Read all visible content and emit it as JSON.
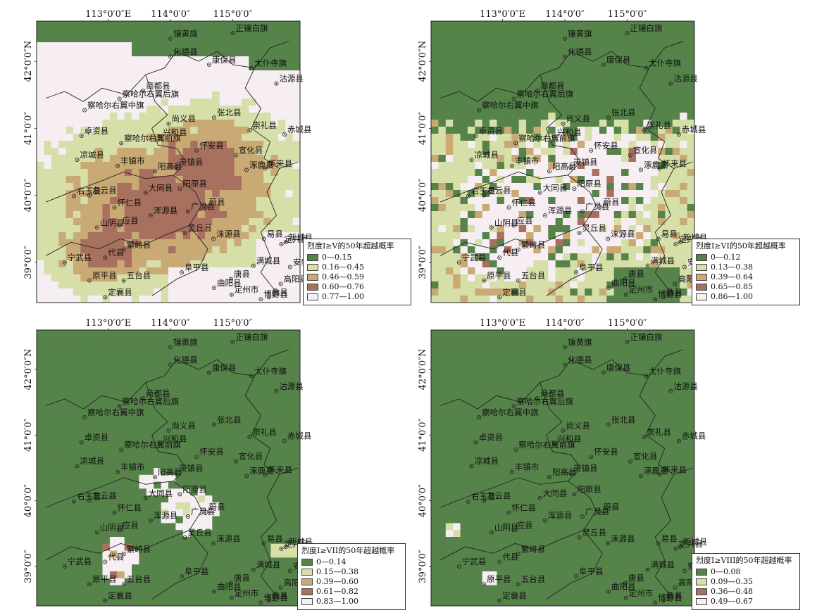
{
  "axes": {
    "lon_labels": [
      "113°0′0″E",
      "114°0′0″",
      "115°0′0″"
    ],
    "lat_labels": [
      "42°0′0″N",
      "41°0′0″",
      "40°0′0″",
      "39°0′0″"
    ]
  },
  "cities": [
    {
      "name": "镶黄旗",
      "lon": 114.0,
      "lat": 42.34
    },
    {
      "name": "正镶白旗",
      "lon": 115.0,
      "lat": 42.42
    },
    {
      "name": "化德县",
      "lon": 114.0,
      "lat": 42.07
    },
    {
      "name": "康保县",
      "lon": 114.62,
      "lat": 41.95
    },
    {
      "name": "太仆寺旗",
      "lon": 115.3,
      "lat": 41.9
    },
    {
      "name": "沽源县",
      "lon": 115.7,
      "lat": 41.67
    },
    {
      "name": "商都县",
      "lon": 113.56,
      "lat": 41.56
    },
    {
      "name": "察哈尔右翼后旗",
      "lon": 113.18,
      "lat": 41.44
    },
    {
      "name": "察哈尔右翼中旗",
      "lon": 112.62,
      "lat": 41.27
    },
    {
      "name": "尚义县",
      "lon": 113.97,
      "lat": 41.07
    },
    {
      "name": "张北县",
      "lon": 114.7,
      "lat": 41.16
    },
    {
      "name": "崇礼县",
      "lon": 115.27,
      "lat": 40.97
    },
    {
      "name": "赤城县",
      "lon": 115.83,
      "lat": 40.91
    },
    {
      "name": "卓资县",
      "lon": 112.57,
      "lat": 40.89
    },
    {
      "name": "兴和县",
      "lon": 113.83,
      "lat": 40.87
    },
    {
      "name": "察哈尔右翼前旗",
      "lon": 113.21,
      "lat": 40.78
    },
    {
      "name": "怀安县",
      "lon": 114.42,
      "lat": 40.67
    },
    {
      "name": "宣化县",
      "lon": 115.05,
      "lat": 40.6
    },
    {
      "name": "凉城县",
      "lon": 112.5,
      "lat": 40.53
    },
    {
      "name": "丰镇市",
      "lon": 113.15,
      "lat": 40.44
    },
    {
      "name": "涿鹿县",
      "lon": 115.22,
      "lat": 40.38
    },
    {
      "name": "怀来县",
      "lon": 115.52,
      "lat": 40.4
    },
    {
      "name": "阳高县",
      "lon": 113.75,
      "lat": 40.36
    },
    {
      "name": "天镇县",
      "lon": 114.09,
      "lat": 40.42
    },
    {
      "name": "阳原县",
      "lon": 114.15,
      "lat": 40.1
    },
    {
      "name": "大同县",
      "lon": 113.6,
      "lat": 40.04
    },
    {
      "name": "右玉县",
      "lon": 112.45,
      "lat": 39.99
    },
    {
      "name": "左云县",
      "lon": 112.7,
      "lat": 40.0
    },
    {
      "name": "怀仁县",
      "lon": 113.1,
      "lat": 39.82
    },
    {
      "name": "蔚县",
      "lon": 114.57,
      "lat": 39.83
    },
    {
      "name": "广灵县",
      "lon": 114.28,
      "lat": 39.76
    },
    {
      "name": "浑源县",
      "lon": 113.68,
      "lat": 39.7
    },
    {
      "name": "山阴县",
      "lon": 112.82,
      "lat": 39.52
    },
    {
      "name": "应县",
      "lon": 113.18,
      "lat": 39.55
    },
    {
      "name": "灵丘县",
      "lon": 114.23,
      "lat": 39.44
    },
    {
      "name": "涞源县",
      "lon": 114.69,
      "lat": 39.35
    },
    {
      "name": "易县",
      "lon": 115.5,
      "lat": 39.35
    },
    {
      "name": "繁峙县",
      "lon": 113.25,
      "lat": 39.19
    },
    {
      "name": "新城县",
      "lon": 115.85,
      "lat": 39.3
    },
    {
      "name": "定兴县",
      "lon": 115.78,
      "lat": 39.27
    },
    {
      "name": "宁武县",
      "lon": 112.3,
      "lat": 39.0
    },
    {
      "name": "代县",
      "lon": 112.95,
      "lat": 39.07
    },
    {
      "name": "满城县",
      "lon": 115.33,
      "lat": 38.95
    },
    {
      "name": "安新县",
      "lon": 115.92,
      "lat": 38.93
    },
    {
      "name": "阜平县",
      "lon": 114.18,
      "lat": 38.85
    },
    {
      "name": "原平县",
      "lon": 112.7,
      "lat": 38.73
    },
    {
      "name": "五台县",
      "lon": 113.25,
      "lat": 38.73
    },
    {
      "name": "唐县",
      "lon": 114.97,
      "lat": 38.75
    },
    {
      "name": "曲阳县",
      "lon": 114.7,
      "lat": 38.62
    },
    {
      "name": "高阳县",
      "lon": 115.77,
      "lat": 38.68
    },
    {
      "name": "定州市",
      "lon": 114.98,
      "lat": 38.52
    },
    {
      "name": "定襄县",
      "lon": 112.95,
      "lat": 38.48
    },
    {
      "name": "博野县",
      "lon": 115.45,
      "lat": 38.45
    },
    {
      "name": "蠡县",
      "lon": 115.58,
      "lat": 38.48
    }
  ],
  "panels": [
    {
      "id": "v",
      "legend_title": "烈度I≥V的50年超越概率",
      "classes": [
        {
          "label": "0—0.15",
          "color": "#56834a"
        },
        {
          "label": "0.16—0.45",
          "color": "#d6dfa8"
        },
        {
          "label": "0.46—0.59",
          "color": "#c9aa74"
        },
        {
          "label": "0.60—0.76",
          "color": "#a8705f"
        },
        {
          "label": "0.77—1.00",
          "color": "#f6eef3"
        }
      ]
    },
    {
      "id": "vi",
      "legend_title": "烈度I≥VI的50年超越概率",
      "classes": [
        {
          "label": "0—0.12",
          "color": "#56834a"
        },
        {
          "label": "0.13—0.38",
          "color": "#d6dfa8"
        },
        {
          "label": "0.39—0.64",
          "color": "#c9aa74"
        },
        {
          "label": "0.65—0.85",
          "color": "#a8705f"
        },
        {
          "label": "0.86—1.00",
          "color": "#f6eef3"
        }
      ]
    },
    {
      "id": "vii",
      "legend_title": "烈度I≥VII的50年超越概率",
      "classes": [
        {
          "label": "0—0.14",
          "color": "#56834a"
        },
        {
          "label": "0.15—0.38",
          "color": "#d6dfa8"
        },
        {
          "label": "0.39—0.60",
          "color": "#c9aa74"
        },
        {
          "label": "0.61—0.82",
          "color": "#a8705f"
        },
        {
          "label": "0.83—1.00",
          "color": "#f6eef3"
        }
      ]
    },
    {
      "id": "viii",
      "legend_title": "烈度I≥VIII的50年超越概率",
      "classes": [
        {
          "label": "0—0.08",
          "color": "#56834a"
        },
        {
          "label": "0.09—0.35",
          "color": "#d6dfa8"
        },
        {
          "label": "0.36—0.48",
          "color": "#a8705f"
        },
        {
          "label": "0.49—0.67",
          "color": "#f6eef3"
        }
      ]
    }
  ]
}
